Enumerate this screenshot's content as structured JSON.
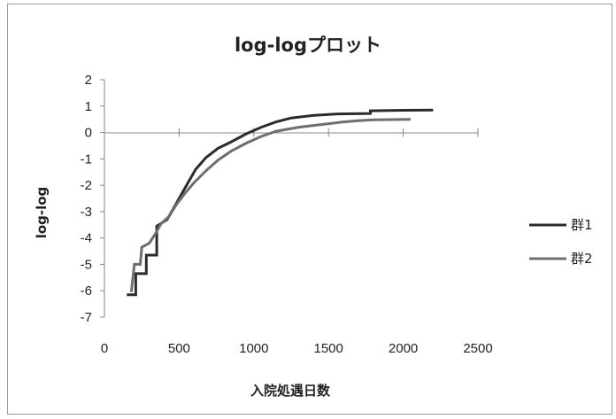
{
  "chart_data": {
    "type": "line",
    "title": "log-logプロット",
    "xlabel": "入院処遇日数",
    "ylabel": "log-log",
    "xlim": [
      0,
      2500
    ],
    "ylim": [
      -7,
      2
    ],
    "x_ticks": [
      "0",
      "500",
      "1000",
      "1500",
      "2000",
      "2500"
    ],
    "y_ticks": [
      "2",
      "1",
      "0",
      "-1",
      "-2",
      "-3",
      "-4",
      "-5",
      "-6",
      "-7"
    ],
    "legend_position": "right",
    "grid": false,
    "series": [
      {
        "name": "群1",
        "color": "#2b2b2b",
        "points": [
          [
            150,
            -6.15
          ],
          [
            210,
            -6.15
          ],
          [
            210,
            -5.35
          ],
          [
            280,
            -5.35
          ],
          [
            280,
            -4.65
          ],
          [
            350,
            -4.65
          ],
          [
            350,
            -3.55
          ],
          [
            420,
            -3.3
          ],
          [
            480,
            -2.7
          ],
          [
            550,
            -2.0
          ],
          [
            610,
            -1.4
          ],
          [
            680,
            -0.95
          ],
          [
            760,
            -0.6
          ],
          [
            850,
            -0.35
          ],
          [
            950,
            -0.05
          ],
          [
            1050,
            0.2
          ],
          [
            1150,
            0.4
          ],
          [
            1250,
            0.55
          ],
          [
            1400,
            0.65
          ],
          [
            1550,
            0.7
          ],
          [
            1780,
            0.72
          ],
          [
            1780,
            0.82
          ],
          [
            2000,
            0.84
          ],
          [
            2200,
            0.85
          ]
        ]
      },
      {
        "name": "群2",
        "color": "#6e6e6e",
        "points": [
          [
            180,
            -6.05
          ],
          [
            200,
            -5.0
          ],
          [
            240,
            -5.0
          ],
          [
            250,
            -4.35
          ],
          [
            300,
            -4.2
          ],
          [
            340,
            -3.85
          ],
          [
            380,
            -3.45
          ],
          [
            430,
            -3.2
          ],
          [
            480,
            -2.75
          ],
          [
            540,
            -2.3
          ],
          [
            600,
            -1.9
          ],
          [
            680,
            -1.45
          ],
          [
            760,
            -1.05
          ],
          [
            850,
            -0.7
          ],
          [
            950,
            -0.4
          ],
          [
            1050,
            -0.15
          ],
          [
            1150,
            0.05
          ],
          [
            1300,
            0.2
          ],
          [
            1450,
            0.3
          ],
          [
            1600,
            0.4
          ],
          [
            1700,
            0.45
          ],
          [
            1800,
            0.48
          ],
          [
            2050,
            0.5
          ]
        ]
      }
    ]
  }
}
